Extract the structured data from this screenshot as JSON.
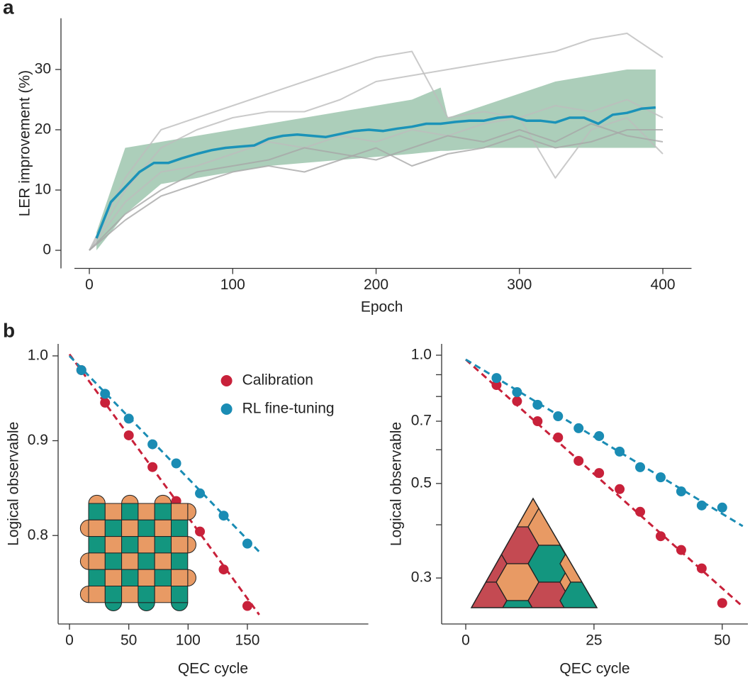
{
  "chart_data": [
    {
      "type": "line",
      "panel_label": "a",
      "xlabel": "Epoch",
      "ylabel": "LER improvement (%)",
      "xlim": [
        -10,
        420
      ],
      "ylim": [
        -3,
        38.5
      ],
      "xticks": [
        0,
        100,
        200,
        300,
        400
      ],
      "yticks": [
        0,
        10,
        20,
        30
      ],
      "band": {
        "color": "#9dc6ae",
        "x": [
          5,
          25,
          50,
          75,
          100,
          125,
          150,
          175,
          200,
          225,
          245,
          250,
          275,
          300,
          325,
          350,
          375,
          395
        ],
        "lower": [
          0,
          6,
          11,
          12,
          13,
          14,
          14.5,
          15,
          15.5,
          16,
          16.5,
          16.5,
          17,
          17,
          17,
          17,
          17,
          17
        ],
        "upper": [
          3,
          17,
          18,
          19,
          20,
          21,
          22,
          23,
          24,
          25,
          27,
          22,
          24,
          26,
          28,
          29,
          30,
          30
        ]
      },
      "series": [
        {
          "color": "#bdbdbd",
          "x": [
            0,
            25,
            50,
            75,
            100,
            125,
            150,
            175,
            200,
            225,
            250,
            275,
            300,
            325,
            350,
            375,
            400
          ],
          "values": [
            0,
            12,
            20,
            22,
            24,
            26,
            28,
            30,
            32,
            33,
            22,
            23,
            22,
            24,
            23,
            25,
            22
          ]
        },
        {
          "color": "#bdbdbd",
          "x": [
            0,
            25,
            50,
            75,
            100,
            125,
            150,
            175,
            200,
            225,
            250,
            275,
            300,
            325,
            350,
            375,
            400
          ],
          "values": [
            0,
            10,
            17,
            20,
            22,
            23,
            23,
            25,
            28,
            29,
            30,
            31,
            32,
            33,
            35,
            36,
            32
          ]
        },
        {
          "color": "#bdbdbd",
          "x": [
            0,
            25,
            50,
            75,
            100,
            125,
            150,
            175,
            200,
            225,
            250,
            275,
            300,
            325,
            350,
            375,
            400
          ],
          "values": [
            0,
            8,
            13,
            14,
            16,
            18,
            17,
            19,
            18,
            20,
            19,
            21,
            22,
            12,
            20,
            22,
            16
          ]
        },
        {
          "color": "#a8a8a8",
          "x": [
            0,
            25,
            50,
            75,
            100,
            125,
            150,
            175,
            200,
            225,
            250,
            275,
            300,
            325,
            350,
            375,
            400
          ],
          "values": [
            0,
            6,
            10,
            13,
            14,
            15,
            17,
            16,
            15,
            17,
            19,
            18,
            20,
            18,
            21,
            19,
            18
          ]
        },
        {
          "color": "#a8a8a8",
          "x": [
            0,
            25,
            50,
            75,
            100,
            125,
            150,
            175,
            200,
            225,
            250,
            275,
            300,
            325,
            350,
            375,
            400
          ],
          "values": [
            0,
            5,
            9,
            11,
            13,
            14,
            13,
            15,
            17,
            14,
            16,
            17,
            19,
            17,
            18,
            20,
            20
          ]
        },
        {
          "color": "#1b93b8",
          "width": 3.5,
          "x": [
            5,
            15,
            25,
            35,
            45,
            55,
            65,
            75,
            85,
            95,
            105,
            115,
            125,
            135,
            145,
            155,
            165,
            175,
            185,
            195,
            205,
            215,
            225,
            235,
            245,
            255,
            265,
            275,
            285,
            295,
            305,
            315,
            325,
            335,
            345,
            355,
            365,
            375,
            385,
            395
          ],
          "values": [
            2,
            8,
            10.5,
            13,
            14.5,
            14.5,
            15.3,
            16,
            16.6,
            17,
            17.2,
            17.4,
            18.5,
            19,
            19.2,
            19,
            18.8,
            19.3,
            19.8,
            20,
            19.8,
            20.2,
            20.5,
            21,
            21,
            21.3,
            21.5,
            21.5,
            22,
            22.2,
            21.5,
            21.5,
            21.2,
            22,
            22,
            21,
            22.5,
            22.8,
            23.5,
            23.7
          ]
        }
      ]
    },
    {
      "type": "scatter",
      "panel_label": "b",
      "xlabel": "QEC cycle",
      "ylabel": "Logical observable",
      "yscale": "log",
      "legend": "upper right",
      "xlim": [
        -10,
        252
      ],
      "ylim": [
        0.717,
        1.015
      ],
      "xticks": [
        0,
        50,
        100,
        150
      ],
      "yticks": [
        {
          "value": 1,
          "label": "1.0"
        },
        0.9,
        0.8
      ],
      "inset": "square",
      "series": [
        {
          "name": "Calibration",
          "color": "#c8213a",
          "x": [
            10,
            30,
            50,
            70,
            90,
            110,
            130,
            150
          ],
          "values": [
            0.9825,
            0.9435,
            0.906,
            0.871,
            0.835,
            0.804,
            0.767,
            0.733
          ]
        },
        {
          "name": "RL fine-tuning",
          "color": "#1a8cb4",
          "x": [
            10,
            30,
            50,
            70,
            90,
            110,
            130,
            150
          ],
          "values": [
            0.9825,
            0.954,
            0.925,
            0.896,
            0.875,
            0.843,
            0.82,
            0.792
          ]
        }
      ],
      "fits": [
        {
          "color": "#c8213a",
          "x": [
            0,
            160
          ],
          "values": [
            1.002,
            0.725
          ]
        },
        {
          "color": "#1a8cb4",
          "x": [
            0,
            160
          ],
          "values": [
            1.0,
            0.784
          ]
        }
      ]
    },
    {
      "type": "scatter",
      "xlabel": "QEC cycle",
      "ylabel": "Logical observable",
      "yscale": "log",
      "xlim": [
        -4.7,
        55
      ],
      "ylim": [
        0.234,
        1.063
      ],
      "xticks": [
        0,
        25,
        50
      ],
      "yticks": [
        {
          "value": 1,
          "label": "1.0"
        },
        0.7,
        0.5,
        0.3
      ],
      "yminorticks": [
        0.9,
        0.8,
        0.6,
        0.4
      ],
      "inset": "triangle",
      "series": [
        {
          "color": "#c8213a",
          "x": [
            6,
            10,
            14,
            18,
            22,
            26,
            30,
            34,
            38,
            42,
            46,
            50
          ],
          "values": [
            0.851,
            0.78,
            0.7,
            0.641,
            0.565,
            0.529,
            0.485,
            0.429,
            0.376,
            0.349,
            0.316,
            0.262
          ]
        },
        {
          "color": "#1a8cb4",
          "x": [
            6,
            10,
            14,
            18,
            22,
            26,
            30,
            34,
            38,
            42,
            46,
            50
          ],
          "values": [
            0.884,
            0.819,
            0.765,
            0.719,
            0.674,
            0.646,
            0.594,
            0.546,
            0.517,
            0.479,
            0.444,
            0.439
          ]
        }
      ],
      "fits": [
        {
          "color": "#c8213a",
          "x": [
            0,
            54
          ],
          "values": [
            0.977,
            0.257
          ]
        },
        {
          "color": "#1a8cb4",
          "x": [
            0,
            54
          ],
          "values": [
            0.977,
            0.397
          ]
        }
      ]
    }
  ]
}
